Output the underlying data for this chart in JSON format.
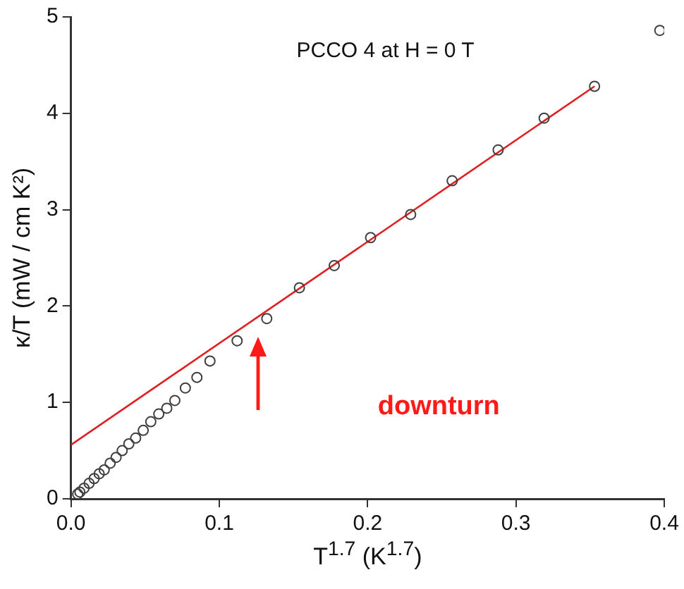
{
  "chart_data": {
    "type": "scatter",
    "xlabel": "T$^{1.7}$ (K$^{1.7}$)",
    "ylabel": "κ/T (mW / cm K²)",
    "annotations": [
      "PCCO 4 at H = 0 T",
      "downturn"
    ],
    "xlim": [
      0,
      0.4
    ],
    "ylim": [
      0,
      5
    ],
    "xticks": [
      {
        "value": 0,
        "label": "0.0"
      },
      {
        "value": 0.1,
        "label": "0.1"
      },
      {
        "value": 0.2,
        "label": "0.2"
      },
      {
        "value": 0.3,
        "label": "0.3"
      },
      {
        "value": 0.4,
        "label": "0.4"
      }
    ],
    "yticks": [
      0,
      1,
      2,
      3,
      4,
      5
    ],
    "grid": false,
    "legend": false,
    "marker": "circle",
    "series": [
      {
        "color": "#404040",
        "x": [
          0.0045,
          0.006,
          0.0088,
          0.0122,
          0.0156,
          0.019,
          0.0224,
          0.0264,
          0.0304,
          0.0345,
          0.039,
          0.0436,
          0.0487,
          0.0538,
          0.0592,
          0.0646,
          0.07,
          0.0771,
          0.0849,
          0.0937,
          0.112,
          0.132,
          0.154,
          0.1775,
          0.202,
          0.229,
          0.257,
          0.288,
          0.319,
          0.353,
          0.397
        ],
        "values": [
          0.05,
          0.07,
          0.11,
          0.16,
          0.21,
          0.26,
          0.3,
          0.37,
          0.43,
          0.5,
          0.57,
          0.63,
          0.71,
          0.8,
          0.88,
          0.94,
          1.02,
          1.15,
          1.26,
          1.43,
          1.64,
          1.87,
          2.19,
          2.42,
          2.71,
          2.95,
          3.3,
          3.62,
          3.95,
          4.28,
          4.86
        ]
      },
      {
        "type": "line",
        "color": "#e02020",
        "x": [
          0,
          0.353
        ],
        "values": [
          0.56,
          4.28
        ],
        "marker": "none",
        "line_style": "solid"
      }
    ]
  }
}
